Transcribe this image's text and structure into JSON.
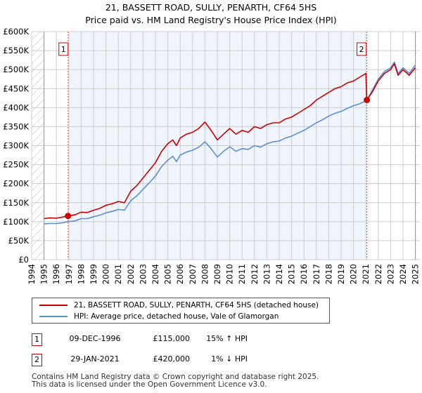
{
  "title_line1": "21, BASSETT ROAD, SULLY, PENARTH, CF64 5HS",
  "title_line2": "Price paid vs. HM Land Registry's House Price Index (HPI)",
  "chart_data": {
    "type": "line",
    "title": "21, BASSETT ROAD, SULLY, PENARTH, CF64 5HS — Price paid vs. HM Land Registry's House Price Index (HPI)",
    "xlabel": "",
    "ylabel": "",
    "xlim": [
      1994,
      2025
    ],
    "ylim": [
      0,
      600000
    ],
    "grid": true,
    "x_ticks": [
      "1994",
      "1995",
      "1996",
      "1997",
      "1998",
      "1999",
      "2000",
      "2001",
      "2002",
      "2003",
      "2004",
      "2005",
      "2006",
      "2007",
      "2008",
      "2009",
      "2010",
      "2011",
      "2012",
      "2013",
      "2014",
      "2015",
      "2016",
      "2017",
      "2018",
      "2019",
      "2020",
      "2021",
      "2022",
      "2023",
      "2024",
      "2025"
    ],
    "y_ticks": [
      {
        "value": 0,
        "label": "£0"
      },
      {
        "value": 50000,
        "label": "£50K"
      },
      {
        "value": 100000,
        "label": "£100K"
      },
      {
        "value": 150000,
        "label": "£150K"
      },
      {
        "value": 200000,
        "label": "£200K"
      },
      {
        "value": 250000,
        "label": "£250K"
      },
      {
        "value": 300000,
        "label": "£300K"
      },
      {
        "value": 350000,
        "label": "£350K"
      },
      {
        "value": 400000,
        "label": "£400K"
      },
      {
        "value": 450000,
        "label": "£450K"
      },
      {
        "value": 500000,
        "label": "£500K"
      },
      {
        "value": 550000,
        "label": "£550K"
      },
      {
        "value": 600000,
        "label": "£600K"
      }
    ],
    "shaded_data_gaps": [
      [
        1994,
        1995
      ],
      [
        2025,
        2025.1
      ]
    ],
    "highlight_range": [
      1996.94,
      2021.08
    ],
    "series": [
      {
        "name": "21, BASSETT ROAD, SULLY, PENARTH, CF64 5HS (detached house)",
        "color": "#cc0000",
        "x": [
          1995.0,
          1995.5,
          1996.0,
          1996.5,
          1996.94,
          1997.5,
          1998.0,
          1998.5,
          1999.0,
          1999.5,
          2000.0,
          2000.5,
          2001.0,
          2001.5,
          2002.0,
          2002.5,
          2003.0,
          2003.5,
          2004.0,
          2004.5,
          2005.0,
          2005.4,
          2005.7,
          2006.0,
          2006.5,
          2007.0,
          2007.5,
          2008.0,
          2008.5,
          2009.0,
          2009.5,
          2010.0,
          2010.5,
          2011.0,
          2011.5,
          2012.0,
          2012.5,
          2013.0,
          2013.5,
          2014.0,
          2014.5,
          2015.0,
          2015.5,
          2016.0,
          2016.5,
          2017.0,
          2017.5,
          2018.0,
          2018.5,
          2019.0,
          2019.5,
          2020.0,
          2020.5,
          2021.0,
          2021.08,
          2021.5,
          2022.0,
          2022.5,
          2023.0,
          2023.3,
          2023.6,
          2024.0,
          2024.5,
          2025.0
        ],
        "values": [
          108000,
          110000,
          109000,
          112000,
          115000,
          118000,
          125000,
          124000,
          130000,
          135000,
          143000,
          147000,
          153000,
          150000,
          180000,
          195000,
          215000,
          235000,
          255000,
          285000,
          305000,
          315000,
          300000,
          320000,
          330000,
          335000,
          345000,
          362000,
          340000,
          315000,
          330000,
          345000,
          330000,
          340000,
          335000,
          350000,
          345000,
          355000,
          360000,
          360000,
          370000,
          375000,
          385000,
          395000,
          405000,
          420000,
          430000,
          440000,
          450000,
          455000,
          465000,
          470000,
          480000,
          490000,
          420000,
          440000,
          470000,
          490000,
          500000,
          515000,
          485000,
          500000,
          485000,
          505000
        ]
      },
      {
        "name": "HPI: Average price, detached house, Vale of Glamorgan",
        "color": "#5b8fd1",
        "x": [
          1995.0,
          1995.5,
          1996.0,
          1996.5,
          1996.94,
          1997.5,
          1998.0,
          1998.5,
          1999.0,
          1999.5,
          2000.0,
          2000.5,
          2001.0,
          2001.5,
          2002.0,
          2002.5,
          2003.0,
          2003.5,
          2004.0,
          2004.5,
          2005.0,
          2005.4,
          2005.7,
          2006.0,
          2006.5,
          2007.0,
          2007.5,
          2008.0,
          2008.5,
          2009.0,
          2009.5,
          2010.0,
          2010.5,
          2011.0,
          2011.5,
          2012.0,
          2012.5,
          2013.0,
          2013.5,
          2014.0,
          2014.5,
          2015.0,
          2015.5,
          2016.0,
          2016.5,
          2017.0,
          2017.5,
          2018.0,
          2018.5,
          2019.0,
          2019.5,
          2020.0,
          2020.5,
          2021.0,
          2021.08,
          2021.5,
          2022.0,
          2022.5,
          2023.0,
          2023.3,
          2023.6,
          2024.0,
          2024.5,
          2025.0
        ],
        "values": [
          94000,
          95000,
          95000,
          97000,
          100000,
          102000,
          108000,
          108000,
          113000,
          117000,
          123000,
          127000,
          132000,
          130000,
          155000,
          168000,
          185000,
          202000,
          220000,
          245000,
          262000,
          272000,
          258000,
          275000,
          283000,
          288000,
          296000,
          310000,
          292000,
          270000,
          285000,
          297000,
          285000,
          292000,
          290000,
          300000,
          296000,
          305000,
          310000,
          312000,
          320000,
          325000,
          333000,
          340000,
          350000,
          360000,
          368000,
          378000,
          385000,
          390000,
          398000,
          405000,
          410000,
          418000,
          419000,
          445000,
          475000,
          495000,
          505000,
          520000,
          490000,
          505000,
          490000,
          512000
        ]
      }
    ],
    "sales": [
      {
        "id": "1",
        "x": 1996.94,
        "value": 115000
      },
      {
        "id": "2",
        "x": 2021.08,
        "value": 420000
      }
    ]
  },
  "legend": {
    "items": [
      {
        "label": "21, BASSETT ROAD, SULLY, PENARTH, CF64 5HS (detached house)",
        "color": "#cc0000"
      },
      {
        "label": "HPI: Average price, detached house, Vale of Glamorgan",
        "color": "#5b8fd1"
      }
    ]
  },
  "sales_table": [
    {
      "id": "1",
      "date": "09-DEC-1996",
      "price": "£115,000",
      "hpi": "15% ↑ HPI"
    },
    {
      "id": "2",
      "date": "29-JAN-2021",
      "price": "£420,000",
      "hpi": "1% ↓ HPI"
    }
  ],
  "footer": {
    "line1": "Contains HM Land Registry data © Crown copyright and database right 2025.",
    "line2": "This data is licensed under the Open Government Licence v3.0."
  }
}
